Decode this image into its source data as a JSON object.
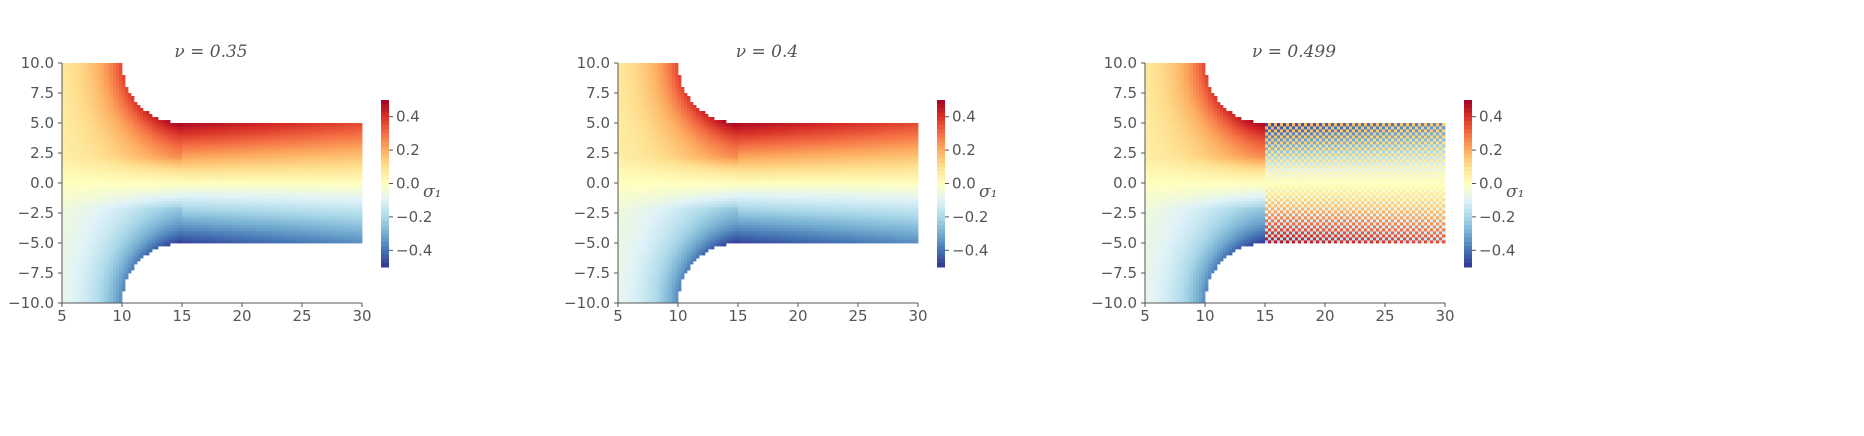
{
  "chart_data": [
    {
      "type": "heatmap",
      "title": "ν = 0.35",
      "x_ticks": [
        "5",
        "10",
        "15",
        "20",
        "25",
        "30"
      ],
      "y_ticks": [
        "10.0",
        "7.5",
        "5.0",
        "2.5",
        "0.0",
        "−2.5",
        "−5.0",
        "−7.5",
        "−10.0"
      ],
      "xlim": [
        5,
        30
      ],
      "ylim": [
        -10,
        10
      ],
      "colorbar": {
        "label": "σ₁",
        "ticks": [
          "0.4",
          "0.2",
          "0.0",
          "−0.2",
          "−0.4"
        ],
        "range": [
          -0.5,
          0.5
        ],
        "colormap": "RdYlBu_r"
      },
      "field_pattern": "antisymmetric bending: positive (red) above y=0, negative (blue) below; strongest near notch root at x≈15",
      "upper_arm_sign": 1,
      "lower_arm_sign": 1
    },
    {
      "type": "heatmap",
      "title": "ν = 0.4",
      "x_ticks": [
        "5",
        "10",
        "15",
        "20",
        "25",
        "30"
      ],
      "y_ticks": [
        "10.0",
        "7.5",
        "5.0",
        "2.5",
        "0.0",
        "−2.5",
        "−5.0",
        "−7.5",
        "−10.0"
      ],
      "xlim": [
        5,
        30
      ],
      "ylim": [
        -10,
        10
      ],
      "colorbar": {
        "label": "σ₁",
        "ticks": [
          "0.4",
          "0.2",
          "0.0",
          "−0.2",
          "−0.4"
        ],
        "range": [
          -0.5,
          0.5
        ],
        "colormap": "RdYlBu_r"
      },
      "field_pattern": "antisymmetric bending: positive (red) above y=0, negative (blue) below; strongest near notch root at x≈15",
      "upper_arm_sign": 1,
      "lower_arm_sign": 1
    },
    {
      "type": "heatmap",
      "title": "ν = 0.499",
      "x_ticks": [
        "5",
        "10",
        "15",
        "20",
        "25",
        "30"
      ],
      "y_ticks": [
        "10.0",
        "7.5",
        "5.0",
        "2.5",
        "0.0",
        "−2.5",
        "−5.0",
        "−7.5",
        "−10.0"
      ],
      "xlim": [
        5,
        30
      ],
      "ylim": [
        -10,
        10
      ],
      "colorbar": {
        "label": "σ₁",
        "ticks": [
          "0.4",
          "0.2",
          "0.0",
          "−0.2",
          "−0.4"
        ],
        "range": [
          -0.5,
          0.5
        ],
        "colormap": "RdYlBu_r"
      },
      "field_pattern": "near-incompressible locking: sign inverted in the right arm (x>15): blue above y=0, red below",
      "upper_arm_sign": -1,
      "lower_arm_sign": -1
    }
  ]
}
